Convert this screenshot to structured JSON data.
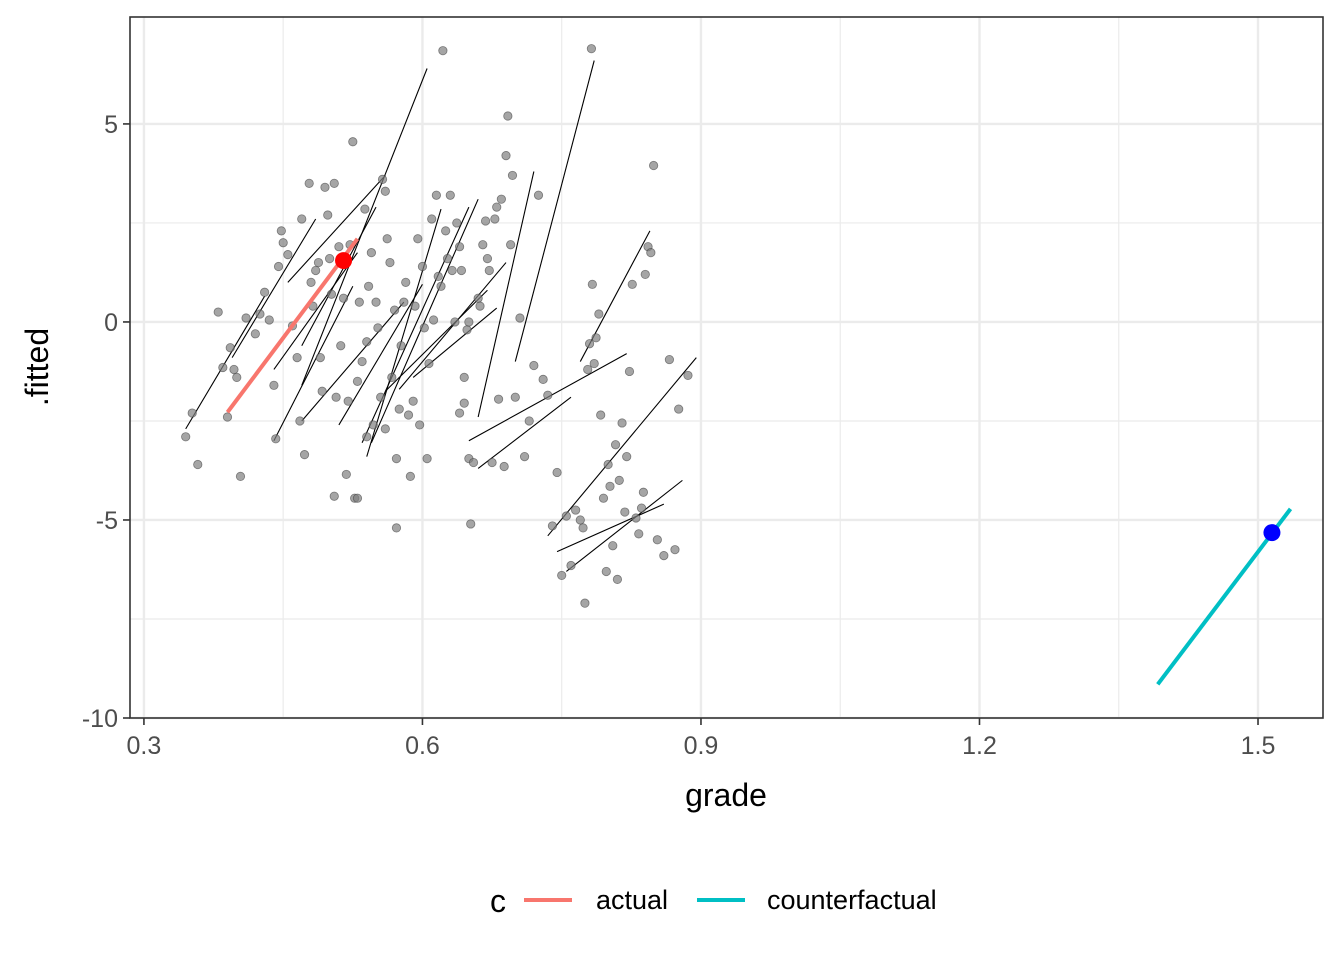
{
  "chart_data": {
    "type": "scatter",
    "xlabel": "grade",
    "ylabel": ".fitted",
    "xlim": [
      0.285,
      1.57
    ],
    "ylim": [
      -10,
      7.7
    ],
    "x_ticks": [
      0.3,
      0.6,
      0.9,
      1.2,
      1.5
    ],
    "x_tick_labels": [
      "0.3",
      "0.6",
      "0.9",
      "1.2",
      "1.5"
    ],
    "y_ticks": [
      -10,
      -5,
      0,
      5
    ],
    "y_tick_labels": [
      "-10",
      "-5",
      "0",
      "5"
    ],
    "grid": true,
    "legend": {
      "title": "c",
      "position": "bottom",
      "entries": [
        {
          "label": "actual",
          "color": "#F8766D"
        },
        {
          "label": "counterfactual",
          "color": "#00BFC4"
        }
      ]
    },
    "colors": {
      "points": "#7f7f7f",
      "segments": "#000000",
      "actual": "#F8766D",
      "counterfactual": "#00BFC4",
      "actual_point": "#FF0000",
      "counterfactual_point": "#0000FF"
    },
    "points": [
      [
        0.345,
        -2.9
      ],
      [
        0.352,
        -2.3
      ],
      [
        0.358,
        -3.6
      ],
      [
        0.39,
        -2.4
      ],
      [
        0.393,
        -0.65
      ],
      [
        0.397,
        -1.2
      ],
      [
        0.4,
        -1.4
      ],
      [
        0.404,
        -3.9
      ],
      [
        0.38,
        0.25
      ],
      [
        0.385,
        -1.15
      ],
      [
        0.41,
        0.1
      ],
      [
        0.42,
        -0.3
      ],
      [
        0.425,
        0.2
      ],
      [
        0.43,
        0.75
      ],
      [
        0.435,
        0.05
      ],
      [
        0.44,
        -1.6
      ],
      [
        0.442,
        -2.95
      ],
      [
        0.445,
        1.4
      ],
      [
        0.448,
        2.3
      ],
      [
        0.45,
        2.0
      ],
      [
        0.455,
        1.7
      ],
      [
        0.46,
        -0.1
      ],
      [
        0.465,
        -0.9
      ],
      [
        0.468,
        -2.5
      ],
      [
        0.47,
        2.6
      ],
      [
        0.473,
        -3.35
      ],
      [
        0.478,
        3.5
      ],
      [
        0.48,
        1.0
      ],
      [
        0.482,
        0.4
      ],
      [
        0.485,
        1.3
      ],
      [
        0.488,
        1.5
      ],
      [
        0.49,
        -0.9
      ],
      [
        0.492,
        -1.75
      ],
      [
        0.495,
        3.4
      ],
      [
        0.498,
        2.7
      ],
      [
        0.5,
        1.6
      ],
      [
        0.502,
        0.7
      ],
      [
        0.505,
        3.5
      ],
      [
        0.507,
        -1.9
      ],
      [
        0.51,
        1.9
      ],
      [
        0.512,
        -0.6
      ],
      [
        0.515,
        0.6
      ],
      [
        0.518,
        -3.85
      ],
      [
        0.52,
        -2.0
      ],
      [
        0.522,
        1.95
      ],
      [
        0.525,
        4.55
      ],
      [
        0.527,
        -4.45
      ],
      [
        0.53,
        -1.5
      ],
      [
        0.532,
        0.5
      ],
      [
        0.535,
        -1.0
      ],
      [
        0.538,
        2.85
      ],
      [
        0.54,
        -0.5
      ],
      [
        0.542,
        0.9
      ],
      [
        0.545,
        1.75
      ],
      [
        0.547,
        -2.6
      ],
      [
        0.55,
        0.5
      ],
      [
        0.552,
        -0.15
      ],
      [
        0.555,
        -1.9
      ],
      [
        0.557,
        3.6
      ],
      [
        0.56,
        3.3
      ],
      [
        0.562,
        2.1
      ],
      [
        0.565,
        1.5
      ],
      [
        0.567,
        -1.4
      ],
      [
        0.57,
        0.3
      ],
      [
        0.572,
        -5.2
      ],
      [
        0.575,
        -2.2
      ],
      [
        0.577,
        -0.6
      ],
      [
        0.58,
        0.5
      ],
      [
        0.582,
        1.0
      ],
      [
        0.585,
        -2.35
      ],
      [
        0.587,
        -3.9
      ],
      [
        0.59,
        -2.0
      ],
      [
        0.592,
        0.4
      ],
      [
        0.595,
        2.1
      ],
      [
        0.597,
        -2.6
      ],
      [
        0.6,
        1.4
      ],
      [
        0.602,
        -0.15
      ],
      [
        0.605,
        -3.45
      ],
      [
        0.607,
        -1.05
      ],
      [
        0.61,
        2.6
      ],
      [
        0.612,
        0.05
      ],
      [
        0.615,
        3.2
      ],
      [
        0.617,
        1.15
      ],
      [
        0.62,
        0.9
      ],
      [
        0.622,
        6.85
      ],
      [
        0.625,
        2.3
      ],
      [
        0.627,
        1.6
      ],
      [
        0.63,
        3.2
      ],
      [
        0.632,
        1.3
      ],
      [
        0.635,
        0.0
      ],
      [
        0.637,
        2.5
      ],
      [
        0.64,
        1.9
      ],
      [
        0.642,
        1.3
      ],
      [
        0.645,
        -1.4
      ],
      [
        0.648,
        -0.2
      ],
      [
        0.65,
        0.0
      ],
      [
        0.505,
        -4.4
      ],
      [
        0.53,
        -4.45
      ],
      [
        0.54,
        -2.9
      ],
      [
        0.572,
        -3.45
      ],
      [
        0.56,
        -2.7
      ],
      [
        0.64,
        -2.3
      ],
      [
        0.645,
        -2.05
      ],
      [
        0.65,
        -3.45
      ],
      [
        0.652,
        -5.1
      ],
      [
        0.655,
        -3.55
      ],
      [
        0.66,
        0.6
      ],
      [
        0.662,
        0.4
      ],
      [
        0.665,
        1.95
      ],
      [
        0.668,
        2.55
      ],
      [
        0.67,
        1.6
      ],
      [
        0.672,
        1.3
      ],
      [
        0.675,
        -3.55
      ],
      [
        0.678,
        2.6
      ],
      [
        0.68,
        2.9
      ],
      [
        0.682,
        -1.95
      ],
      [
        0.685,
        3.1
      ],
      [
        0.688,
        -3.65
      ],
      [
        0.69,
        4.2
      ],
      [
        0.692,
        5.2
      ],
      [
        0.695,
        1.95
      ],
      [
        0.697,
        3.7
      ],
      [
        0.7,
        -1.9
      ],
      [
        0.705,
        0.1
      ],
      [
        0.71,
        -3.4
      ],
      [
        0.715,
        -2.5
      ],
      [
        0.72,
        -1.1
      ],
      [
        0.725,
        3.2
      ],
      [
        0.73,
        -1.45
      ],
      [
        0.735,
        -1.85
      ],
      [
        0.74,
        -5.15
      ],
      [
        0.745,
        -3.8
      ],
      [
        0.75,
        -6.4
      ],
      [
        0.755,
        -4.9
      ],
      [
        0.76,
        -6.15
      ],
      [
        0.765,
        -4.75
      ],
      [
        0.77,
        -5.0
      ],
      [
        0.773,
        -5.2
      ],
      [
        0.775,
        -7.1
      ],
      [
        0.778,
        -1.2
      ],
      [
        0.78,
        -0.55
      ],
      [
        0.783,
        0.95
      ],
      [
        0.785,
        -1.05
      ],
      [
        0.787,
        -0.4
      ],
      [
        0.79,
        0.2
      ],
      [
        0.792,
        -2.35
      ],
      [
        0.795,
        -4.45
      ],
      [
        0.798,
        -6.3
      ],
      [
        0.8,
        -3.6
      ],
      [
        0.802,
        -4.15
      ],
      [
        0.805,
        -5.65
      ],
      [
        0.808,
        -3.1
      ],
      [
        0.81,
        -6.5
      ],
      [
        0.812,
        -4.0
      ],
      [
        0.815,
        -2.55
      ],
      [
        0.818,
        -4.8
      ],
      [
        0.82,
        -3.4
      ],
      [
        0.823,
        -1.25
      ],
      [
        0.826,
        0.95
      ],
      [
        0.83,
        -4.95
      ],
      [
        0.833,
        -5.35
      ],
      [
        0.836,
        -4.7
      ],
      [
        0.838,
        -4.3
      ],
      [
        0.84,
        1.2
      ],
      [
        0.843,
        1.9
      ],
      [
        0.846,
        1.75
      ],
      [
        0.849,
        3.95
      ],
      [
        0.853,
        -5.5
      ],
      [
        0.86,
        -5.9
      ],
      [
        0.866,
        -0.95
      ],
      [
        0.872,
        -5.75
      ],
      [
        0.876,
        -2.2
      ],
      [
        0.886,
        -1.35
      ],
      [
        0.782,
        6.9
      ]
    ],
    "segments": [
      [
        0.345,
        -2.7,
        0.43,
        0.65
      ],
      [
        0.395,
        -0.9,
        0.485,
        2.6
      ],
      [
        0.44,
        -3.0,
        0.525,
        0.9
      ],
      [
        0.44,
        -1.2,
        0.53,
        1.75
      ],
      [
        0.47,
        -0.6,
        0.55,
        2.9
      ],
      [
        0.455,
        1.0,
        0.56,
        3.7
      ],
      [
        0.47,
        -1.6,
        0.605,
        6.4
      ],
      [
        0.47,
        -2.5,
        0.58,
        0.5
      ],
      [
        0.51,
        -2.6,
        0.6,
        0.95
      ],
      [
        0.535,
        -3.05,
        0.65,
        2.9
      ],
      [
        0.545,
        -3.05,
        0.66,
        3.1
      ],
      [
        0.54,
        -3.4,
        0.62,
        2.85
      ],
      [
        0.56,
        -1.75,
        0.67,
        0.8
      ],
      [
        0.575,
        -1.7,
        0.69,
        1.5
      ],
      [
        0.59,
        -1.4,
        0.68,
        0.35
      ],
      [
        0.66,
        -2.4,
        0.72,
        3.8
      ],
      [
        0.65,
        -3.0,
        0.82,
        -0.8
      ],
      [
        0.66,
        -3.7,
        0.76,
        -1.9
      ],
      [
        0.7,
        -1.0,
        0.785,
        6.6
      ],
      [
        0.77,
        -1.0,
        0.845,
        2.3
      ],
      [
        0.735,
        -5.4,
        0.895,
        -0.9
      ],
      [
        0.745,
        -5.8,
        0.86,
        -4.6
      ],
      [
        0.755,
        -6.3,
        0.88,
        -4.0
      ]
    ],
    "actual_line": [
      [
        0.39,
        -2.28
      ],
      [
        0.53,
        2.1
      ]
    ],
    "actual_point": [
      0.515,
      1.55
    ],
    "counterfactual_line": [
      [
        1.392,
        -9.15
      ],
      [
        1.535,
        -4.72
      ]
    ],
    "counterfactual_point": [
      1.515,
      -5.32
    ]
  }
}
